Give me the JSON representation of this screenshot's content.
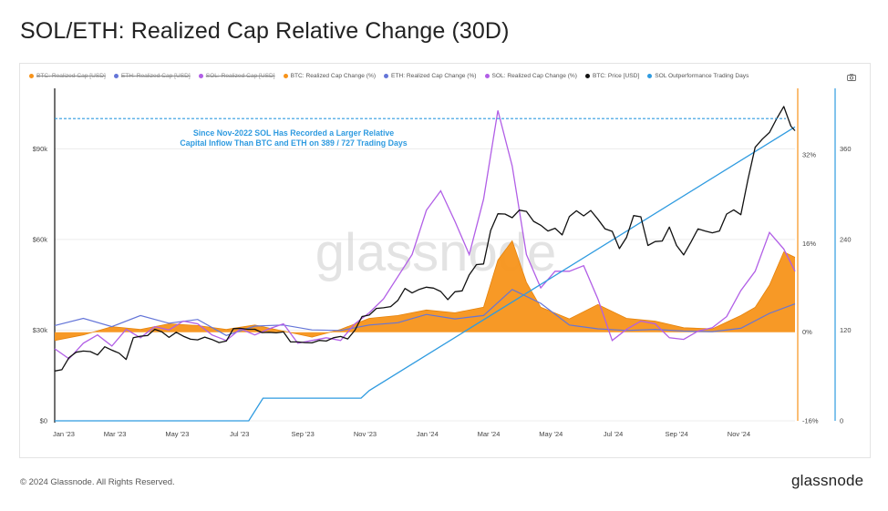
{
  "page": {
    "title": "SOL/ETH: Realized Cap Relative Change (30D)",
    "copyright": "© 2024 Glassnode. All Rights Reserved.",
    "brand": "glassnode",
    "watermark": "glassnode"
  },
  "colors": {
    "btc_realized_change": "#f7931a",
    "eth_realized_change": "#6475d8",
    "sol_realized_change": "#b15ee6",
    "btc_price": "#111111",
    "sol_outperformance": "#2f9be0",
    "annotation": "#2f9be0"
  },
  "legend": [
    {
      "label": "BTC: Realized Cap [USD]",
      "color": "#f7931a",
      "enabled": false
    },
    {
      "label": "ETH: Realized Cap [USD]",
      "color": "#6475d8",
      "enabled": false
    },
    {
      "label": "SOL: Realized Cap [USD]",
      "color": "#b15ee6",
      "enabled": false
    },
    {
      "label": "BTC: Realized Cap Change (%)",
      "color": "#f7931a",
      "enabled": true
    },
    {
      "label": "ETH: Realized Cap Change (%)",
      "color": "#6475d8",
      "enabled": true
    },
    {
      "label": "SOL: Realized Cap Change (%)",
      "color": "#b15ee6",
      "enabled": true
    },
    {
      "label": "BTC: Price [USD]",
      "color": "#111111",
      "enabled": true
    },
    {
      "label": "SOL Outperformance Trading Days",
      "color": "#2f9be0",
      "enabled": true
    }
  ],
  "chart_data": {
    "type": "line",
    "title": "SOL/ETH: Realized Cap Relative Change (30D)",
    "annotation": [
      "Since Nov-2022 SOL Has Recorded a Larger Relative",
      "Capital Inflow Than BTC and ETH on 389 / 727 Trading Days"
    ],
    "x_ticks": [
      "Jan '23",
      "Mar '23",
      "May '23",
      "Jul '23",
      "Sep '23",
      "Nov '23",
      "Jan '24",
      "Mar '24",
      "May '24",
      "Jul '24",
      "Sep '24",
      "Nov '24"
    ],
    "x_range": [
      "2023-01-01",
      "2024-12-26"
    ],
    "y_axes": {
      "price": {
        "ticks": [
          "$0",
          "$30k",
          "$60k",
          "$90k"
        ],
        "ylim": [
          0,
          110000
        ]
      },
      "change_pct": {
        "ticks": [
          "-16%",
          "0%",
          "16%",
          "32%"
        ],
        "ylim": [
          -16,
          44
        ]
      },
      "trading_days": {
        "ticks": [
          "0",
          "120",
          "240",
          "360"
        ],
        "ylim": [
          0,
          440
        ]
      }
    },
    "grid": true,
    "legend_position": "top",
    "series": [
      {
        "name": "BTC: Price [USD]",
        "axis": "price",
        "x": [
          "2023-01-01",
          "2023-01-08",
          "2023-01-15",
          "2023-01-22",
          "2023-01-29",
          "2023-02-05",
          "2023-02-12",
          "2023-02-19",
          "2023-02-26",
          "2023-03-05",
          "2023-03-12",
          "2023-03-19",
          "2023-03-26",
          "2023-04-02",
          "2023-04-09",
          "2023-04-16",
          "2023-04-23",
          "2023-04-30",
          "2023-05-07",
          "2023-05-14",
          "2023-05-21",
          "2023-05-28",
          "2023-06-04",
          "2023-06-11",
          "2023-06-18",
          "2023-06-25",
          "2023-07-02",
          "2023-07-09",
          "2023-07-16",
          "2023-07-23",
          "2023-07-30",
          "2023-08-06",
          "2023-08-13",
          "2023-08-20",
          "2023-08-27",
          "2023-09-03",
          "2023-09-10",
          "2023-09-17",
          "2023-09-24",
          "2023-10-01",
          "2023-10-08",
          "2023-10-15",
          "2023-10-22",
          "2023-10-29",
          "2023-11-05",
          "2023-11-12",
          "2023-11-19",
          "2023-11-26",
          "2023-12-03",
          "2023-12-10",
          "2023-12-17",
          "2023-12-24",
          "2023-12-31",
          "2024-01-07",
          "2024-01-14",
          "2024-01-21",
          "2024-01-28",
          "2024-02-04",
          "2024-02-11",
          "2024-02-18",
          "2024-02-25",
          "2024-03-03",
          "2024-03-10",
          "2024-03-17",
          "2024-03-24",
          "2024-03-31",
          "2024-04-07",
          "2024-04-14",
          "2024-04-21",
          "2024-04-28",
          "2024-05-05",
          "2024-05-12",
          "2024-05-19",
          "2024-05-26",
          "2024-06-02",
          "2024-06-09",
          "2024-06-16",
          "2024-06-23",
          "2024-06-30",
          "2024-07-07",
          "2024-07-14",
          "2024-07-21",
          "2024-07-28",
          "2024-08-04",
          "2024-08-11",
          "2024-08-18",
          "2024-08-25",
          "2024-09-01",
          "2024-09-08",
          "2024-09-15",
          "2024-09-22",
          "2024-09-29",
          "2024-10-06",
          "2024-10-13",
          "2024-10-20",
          "2024-10-27",
          "2024-11-03",
          "2024-11-10",
          "2024-11-17",
          "2024-11-24",
          "2024-12-01",
          "2024-12-08",
          "2024-12-15",
          "2024-12-22",
          "2024-12-26"
        ],
        "values": [
          16500,
          16900,
          20900,
          22700,
          23100,
          22900,
          21800,
          24500,
          23400,
          22400,
          20300,
          27500,
          28000,
          28200,
          30300,
          29400,
          27600,
          29300,
          28000,
          27000,
          26800,
          27700,
          26900,
          25900,
          26400,
          30500,
          30600,
          30300,
          30300,
          29200,
          29300,
          29100,
          29400,
          26100,
          26100,
          25900,
          25800,
          26600,
          26400,
          27500,
          27900,
          27100,
          30000,
          34500,
          35000,
          37200,
          37400,
          37800,
          39800,
          43800,
          42300,
          43500,
          44200,
          43900,
          42800,
          40100,
          42700,
          43000,
          48300,
          51700,
          51900,
          63000,
          68500,
          68400,
          67200,
          69700,
          69300,
          66000,
          64700,
          62800,
          63700,
          61500,
          67600,
          69500,
          67800,
          69600,
          66700,
          63500,
          62700,
          57000,
          60700,
          67900,
          67500,
          58000,
          59300,
          59500,
          64100,
          58000,
          54900,
          59100,
          63500,
          62800,
          62200,
          62800,
          68400,
          69800,
          68200,
          80000,
          90500,
          93200,
          95400,
          99900,
          104000,
          97500,
          96000
        ]
      },
      {
        "name": "ETH: Realized Cap Change (%)",
        "axis": "change_pct",
        "x": [
          "2023-01-01",
          "2023-01-29",
          "2023-02-26",
          "2023-03-26",
          "2023-04-23",
          "2023-05-21",
          "2023-06-18",
          "2023-07-16",
          "2023-08-13",
          "2023-09-10",
          "2023-10-08",
          "2023-11-05",
          "2023-12-03",
          "2023-12-31",
          "2024-01-28",
          "2024-02-25",
          "2024-03-24",
          "2024-04-21",
          "2024-05-19",
          "2024-06-16",
          "2024-07-14",
          "2024-08-11",
          "2024-09-08",
          "2024-10-06",
          "2024-11-03",
          "2024-12-01",
          "2024-12-26"
        ],
        "values": [
          1.2,
          2.5,
          1.0,
          3.0,
          1.6,
          2.3,
          -0.6,
          1.1,
          1.3,
          0.4,
          0.3,
          1.3,
          1.7,
          3.2,
          2.4,
          3.0,
          7.7,
          5.2,
          1.3,
          0.6,
          0.3,
          0.5,
          0.2,
          0.1,
          0.7,
          3.4,
          5.1
        ]
      },
      {
        "name": "SOL: Realized Cap Change (%)",
        "axis": "change_pct",
        "x": [
          "2023-01-01",
          "2023-01-15",
          "2023-01-29",
          "2023-02-12",
          "2023-02-26",
          "2023-03-12",
          "2023-03-26",
          "2023-04-09",
          "2023-04-23",
          "2023-05-07",
          "2023-05-21",
          "2023-06-04",
          "2023-06-18",
          "2023-07-02",
          "2023-07-16",
          "2023-07-30",
          "2023-08-13",
          "2023-08-27",
          "2023-09-10",
          "2023-09-24",
          "2023-10-08",
          "2023-10-22",
          "2023-11-05",
          "2023-11-19",
          "2023-12-03",
          "2023-12-17",
          "2023-12-31",
          "2024-01-14",
          "2024-01-28",
          "2024-02-11",
          "2024-02-25",
          "2024-03-10",
          "2024-03-24",
          "2024-04-07",
          "2024-04-21",
          "2024-05-05",
          "2024-05-19",
          "2024-06-02",
          "2024-06-16",
          "2024-06-30",
          "2024-07-14",
          "2024-07-28",
          "2024-08-11",
          "2024-08-25",
          "2024-09-08",
          "2024-09-22",
          "2024-10-06",
          "2024-10-20",
          "2024-11-03",
          "2024-11-17",
          "2024-12-01",
          "2024-12-15",
          "2024-12-26"
        ],
        "values": [
          -3.0,
          -4.8,
          -2.0,
          -0.5,
          -2.5,
          0.5,
          -1.0,
          1.0,
          0.4,
          2.0,
          1.5,
          -0.5,
          -1.5,
          0.6,
          -0.5,
          0.6,
          1.5,
          -2.0,
          -1.5,
          -1.0,
          -1.5,
          1.5,
          3.5,
          6.0,
          10.0,
          14.0,
          22.0,
          25.5,
          20.0,
          14.0,
          24.0,
          40.0,
          30.0,
          14.0,
          8.0,
          11.0,
          11.0,
          12.0,
          6.0,
          -1.5,
          0.5,
          2.0,
          1.5,
          -1.0,
          -1.3,
          0.2,
          0.8,
          2.8,
          7.5,
          11.0,
          18.0,
          15.0,
          11.0
        ]
      },
      {
        "name": "BTC: Realized Cap Change (%)",
        "axis": "change_pct",
        "x": [
          "2023-01-01",
          "2023-01-29",
          "2023-02-26",
          "2023-03-26",
          "2023-04-23",
          "2023-05-21",
          "2023-06-18",
          "2023-07-16",
          "2023-08-13",
          "2023-09-10",
          "2023-10-08",
          "2023-11-05",
          "2023-12-03",
          "2023-12-31",
          "2024-01-28",
          "2024-02-25",
          "2024-03-10",
          "2024-03-24",
          "2024-04-07",
          "2024-04-21",
          "2024-05-19",
          "2024-06-16",
          "2024-07-14",
          "2024-08-11",
          "2024-09-08",
          "2024-10-06",
          "2024-11-03",
          "2024-11-17",
          "2024-12-01",
          "2024-12-15",
          "2024-12-26"
        ],
        "values": [
          -1.5,
          -0.5,
          1.0,
          0.5,
          1.5,
          1.2,
          0.5,
          1.3,
          0.2,
          -0.9,
          0.5,
          2.5,
          3.0,
          4.0,
          3.5,
          4.5,
          13.0,
          16.5,
          9.0,
          4.5,
          2.4,
          5.0,
          2.5,
          2.0,
          0.8,
          0.6,
          3.0,
          4.5,
          8.5,
          14.5,
          13.5
        ]
      },
      {
        "name": "SOL Outperformance Trading Days",
        "axis": "trading_days",
        "x": [
          "2023-01-01",
          "2023-07-10",
          "2023-07-24",
          "2023-10-28",
          "2023-11-05",
          "2024-12-26"
        ],
        "values": [
          0,
          0,
          30,
          30,
          40,
          389
        ]
      }
    ],
    "reference_line": {
      "axis": "price",
      "value": 100000
    }
  }
}
